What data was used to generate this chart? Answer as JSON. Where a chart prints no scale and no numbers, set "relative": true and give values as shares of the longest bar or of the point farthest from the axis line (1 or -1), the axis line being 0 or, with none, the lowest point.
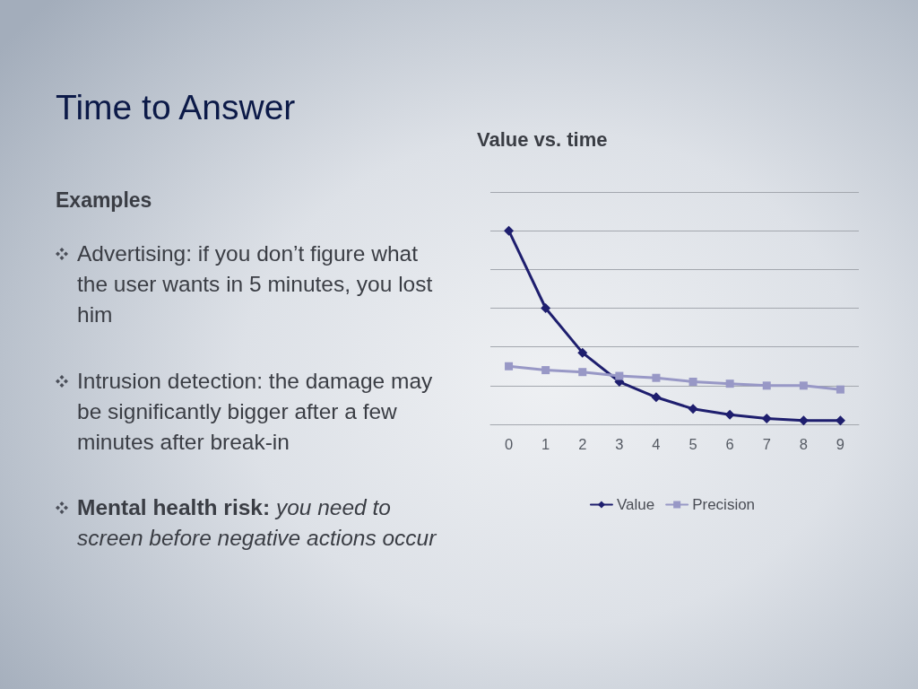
{
  "chart_data": {
    "type": "line",
    "title": "Value vs. time",
    "categories": [
      "0",
      "1",
      "2",
      "3",
      "4",
      "5",
      "6",
      "7",
      "8",
      "9"
    ],
    "series": [
      {
        "name": "Value",
        "color": "#1e1e6e",
        "marker": "diamond",
        "values": [
          1,
          0.6,
          0.37,
          0.22,
          0.14,
          0.08,
          0.05,
          0.03,
          0.02,
          0.02
        ]
      },
      {
        "name": "Precision",
        "color": "#9898c6",
        "marker": "square",
        "values": [
          0.3,
          0.28,
          0.27,
          0.25,
          0.24,
          0.22,
          0.21,
          0.2,
          0.2,
          0.18
        ]
      }
    ],
    "relative": true,
    "grid": "y",
    "legend": "bottom",
    "annotations": [
      "Time to Answer",
      "Examples",
      "Advertising: if you don’t figure what the user wants in 5 minutes, you lost him",
      "Intrusion detection: the damage may be significantly bigger after a few minutes after break-in",
      "Mental health risk: you need to screen before negative actions occur"
    ]
  }
}
